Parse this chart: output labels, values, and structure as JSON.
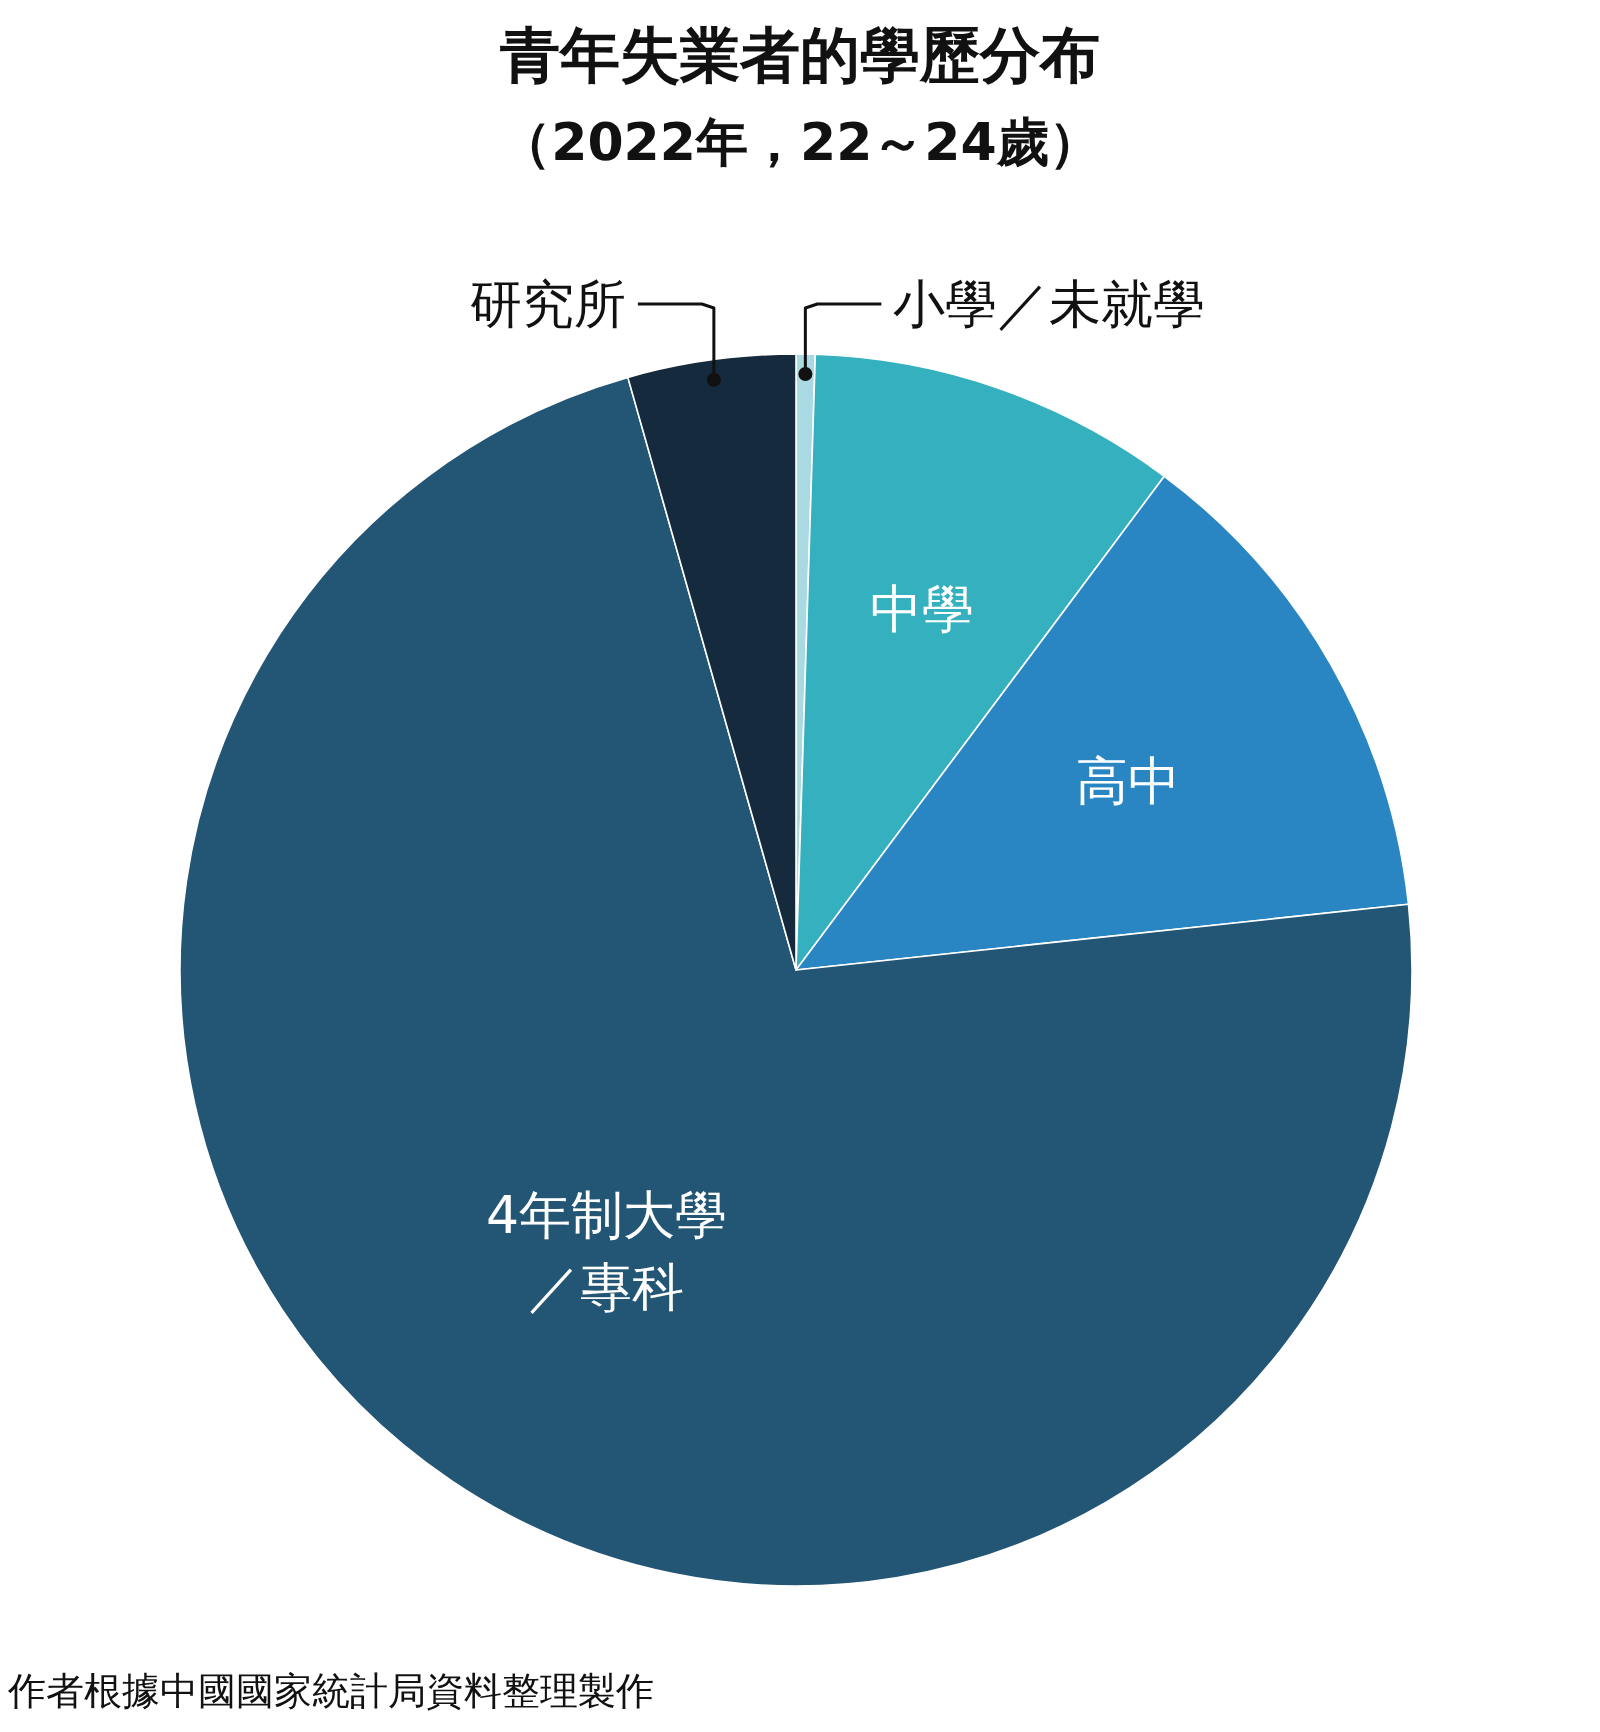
{
  "chart_data": {
    "type": "pie",
    "title": "青年失業者的學歷分布",
    "subtitle": "（2022年，22～24歲）",
    "categories": [
      "小學／未就學",
      "中學",
      "高中",
      "4年制大學／專科",
      "研究所"
    ],
    "values": [
      0.5,
      9.7,
      13.1,
      72.3,
      4.4
    ],
    "colors": [
      "#a9d9e3",
      "#35b0be",
      "#2a86c2",
      "#235574",
      "#152a3c"
    ],
    "annotations": [
      "作者根據中國國家統計局資料整理製作"
    ]
  }
}
